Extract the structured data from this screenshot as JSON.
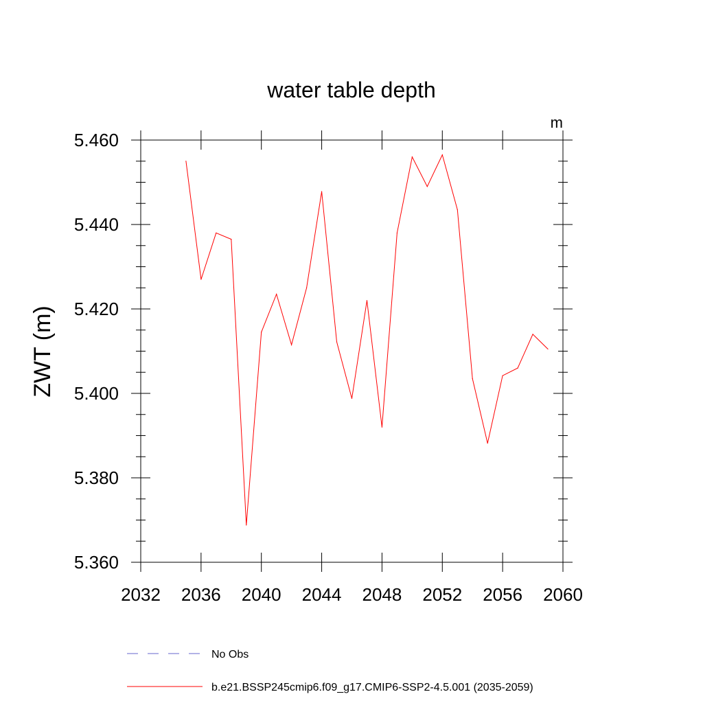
{
  "chart_data": {
    "type": "line",
    "title": "water table depth",
    "units": "m",
    "ylabel": "ZWT  (m)",
    "xlabel": "",
    "xlim": [
      2032,
      2060
    ],
    "ylim": [
      5.36,
      5.46
    ],
    "x_ticks": [
      "2032",
      "2036",
      "2040",
      "2044",
      "2048",
      "2052",
      "2056",
      "2060"
    ],
    "y_ticks": [
      "5.360",
      "5.380",
      "5.400",
      "5.420",
      "5.440",
      "5.460"
    ],
    "grid": false,
    "legend_position": "bottom",
    "legend": [
      {
        "name": "No Obs",
        "color": "#6666cc",
        "style": "dashed"
      },
      {
        "name": "b.e21.BSSP245cmip6.f09_g17.CMIP6-SSP2-4.5.001 (2035-2059)",
        "color": "#ff0000",
        "style": "solid"
      }
    ],
    "series": [
      {
        "name": "b.e21.BSSP245cmip6.f09_g17.CMIP6-SSP2-4.5.001 (2035-2059)",
        "color": "#ff0000",
        "x": [
          2035,
          2036,
          2037,
          2038,
          2039,
          2040,
          2041,
          2042,
          2043,
          2044,
          2045,
          2046,
          2047,
          2048,
          2049,
          2050,
          2051,
          2052,
          2053,
          2054,
          2055,
          2056,
          2057,
          2058,
          2059
        ],
        "values": [
          5.455,
          5.427,
          5.438,
          5.4365,
          5.3688,
          5.4145,
          5.4235,
          5.4115,
          5.425,
          5.4478,
          5.4122,
          5.3988,
          5.422,
          5.392,
          5.438,
          5.456,
          5.449,
          5.4565,
          5.4435,
          5.4035,
          5.3882,
          5.4042,
          5.406,
          5.414,
          5.4105
        ]
      }
    ]
  }
}
